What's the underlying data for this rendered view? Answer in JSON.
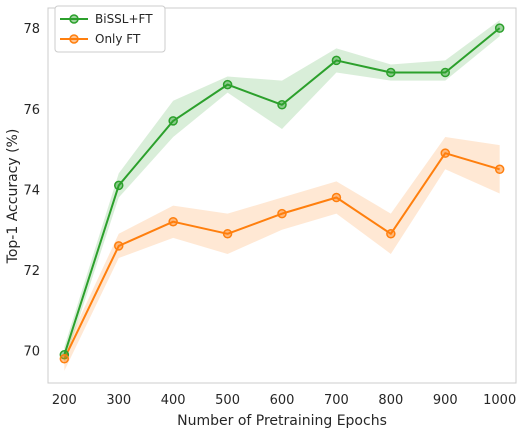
{
  "chart_data": {
    "type": "line",
    "x": [
      200,
      300,
      400,
      500,
      600,
      700,
      800,
      900,
      1000
    ],
    "xticks": [
      "200",
      "300",
      "400",
      "500",
      "600",
      "700",
      "800",
      "900",
      "1000"
    ],
    "yticks": [
      "70",
      "72",
      "74",
      "76",
      "78"
    ],
    "xlim": [
      170,
      1030
    ],
    "ylim": [
      69.2,
      78.5
    ],
    "xlabel": "Number of Pretraining Epochs",
    "ylabel": "Top-1 Accuracy (%)",
    "grid": false,
    "legend_position": "top-left",
    "series": [
      {
        "name": "BiSSL+FT",
        "color": "#2ca02c",
        "values": [
          69.9,
          74.1,
          75.7,
          76.6,
          76.1,
          77.2,
          76.9,
          76.9,
          78.0
        ],
        "lower": [
          69.7,
          73.8,
          75.3,
          76.4,
          75.5,
          76.9,
          76.7,
          76.7,
          77.8
        ],
        "upper": [
          70.1,
          74.4,
          76.2,
          76.8,
          76.7,
          77.5,
          77.1,
          77.2,
          78.2
        ]
      },
      {
        "name": "Only FT",
        "color": "#ff7f0e",
        "values": [
          69.8,
          72.6,
          73.2,
          72.9,
          73.4,
          73.8,
          72.9,
          74.9,
          74.5
        ],
        "lower": [
          69.5,
          72.3,
          72.8,
          72.4,
          73.0,
          73.4,
          72.4,
          74.5,
          73.9
        ],
        "upper": [
          70.0,
          72.9,
          73.6,
          73.4,
          73.8,
          74.2,
          73.4,
          75.3,
          75.1
        ]
      }
    ]
  }
}
